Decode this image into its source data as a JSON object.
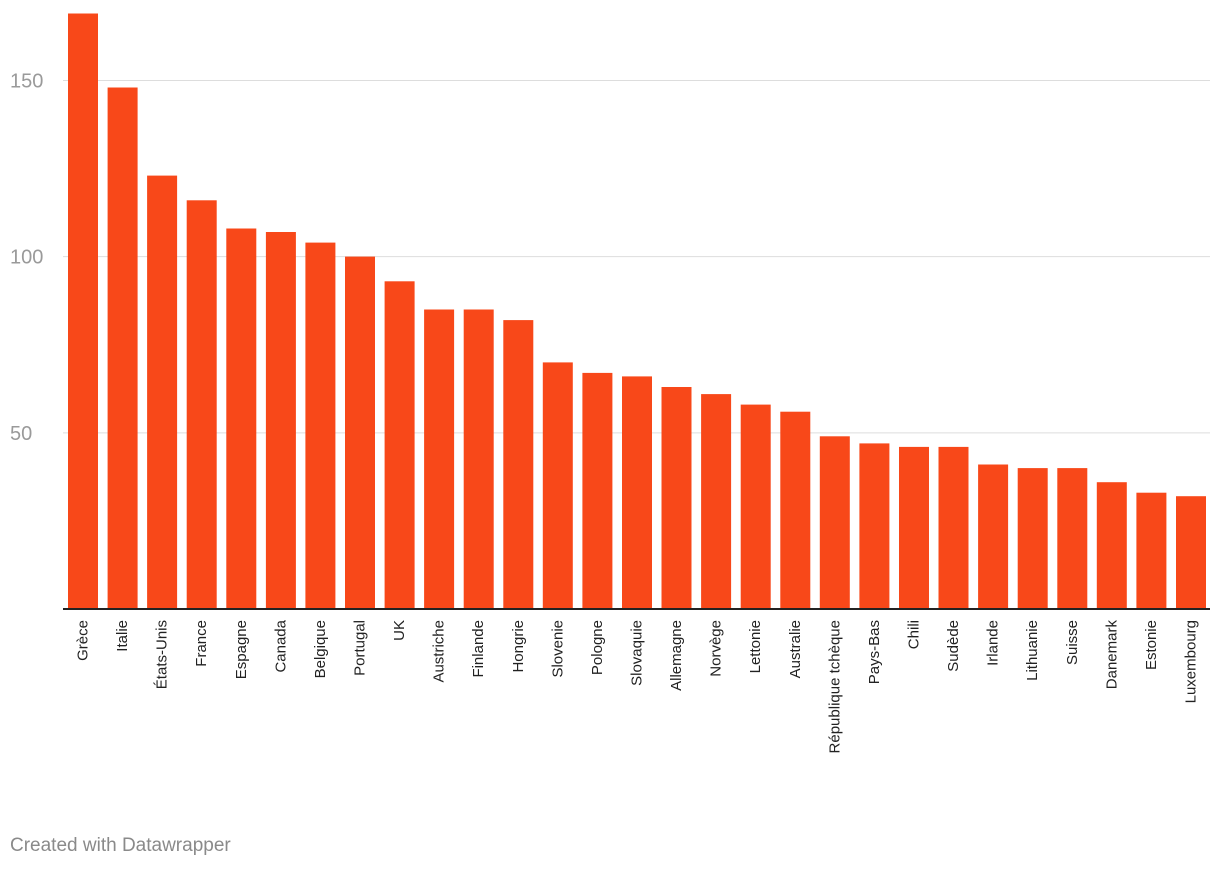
{
  "chart_data": {
    "type": "bar",
    "categories": [
      "Grèce",
      "Italie",
      "États-Unis",
      "France",
      "Espagne",
      "Canada",
      "Belgique",
      "Portugal",
      "UK",
      "Austriche",
      "Finlande",
      "Hongrie",
      "Slovenie",
      "Pologne",
      "Slovaquie",
      "Allemagne",
      "Norvège",
      "Lettonie",
      "Australie",
      "République tchèque",
      "Pays-Bas",
      "Chili",
      "Sudède",
      "Irlande",
      "Lithuanie",
      "Suisse",
      "Danemark",
      "Estonie",
      "Luxembourg"
    ],
    "values": [
      169,
      148,
      123,
      116,
      108,
      107,
      104,
      100,
      93,
      85,
      85,
      82,
      70,
      67,
      66,
      63,
      61,
      58,
      56,
      49,
      47,
      46,
      46,
      41,
      40,
      40,
      36,
      33,
      32
    ],
    "yticks": [
      50,
      100,
      150
    ],
    "ylim": [
      0,
      170
    ],
    "grid": true,
    "bar_color": "#f84819",
    "title": "",
    "xlabel": "",
    "ylabel": ""
  },
  "footer": {
    "credit": "Created with Datawrapper"
  }
}
